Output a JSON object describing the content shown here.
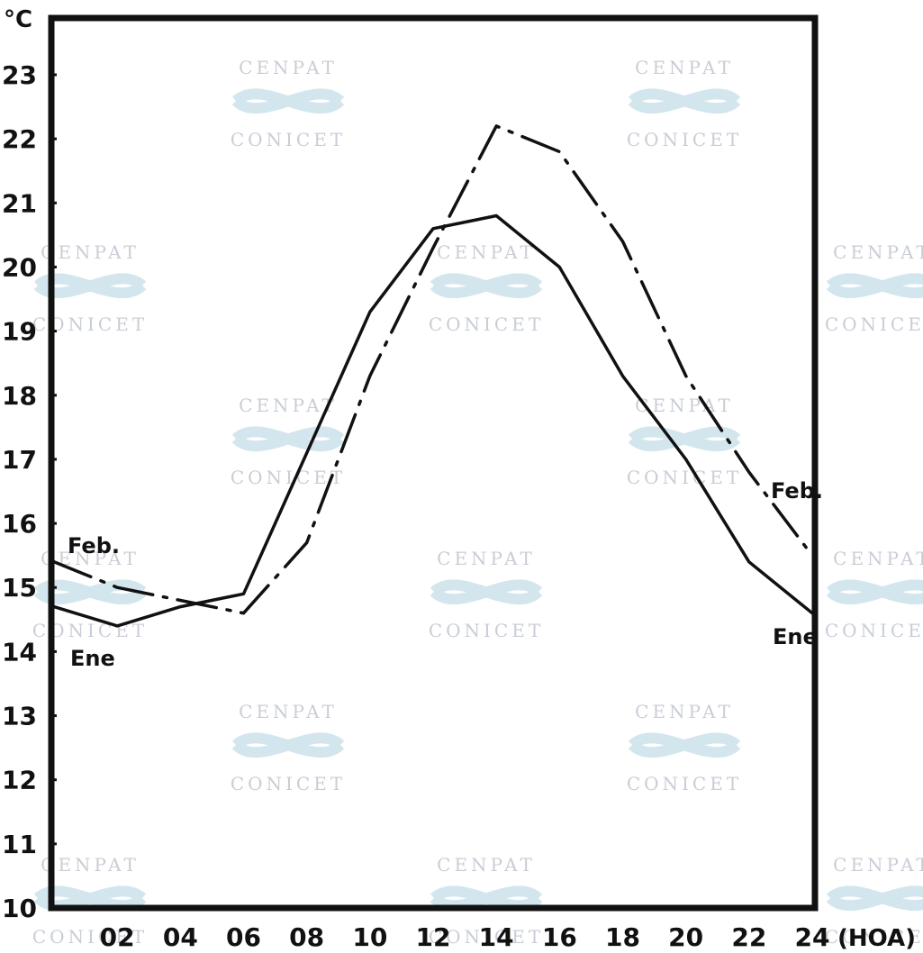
{
  "chart_data": {
    "type": "line",
    "title": "",
    "ylabel": "°C",
    "xlabel": "(HOA)",
    "ylim": [
      10,
      24
    ],
    "xlim": [
      0,
      24
    ],
    "grid": false,
    "x_ticks": [
      "02",
      "04",
      "06",
      "08",
      "10",
      "12",
      "14",
      "16",
      "18",
      "20",
      "22",
      "24"
    ],
    "y_ticks": [
      "10",
      "11",
      "12",
      "13",
      "14",
      "15",
      "16",
      "17",
      "18",
      "19",
      "20",
      "21",
      "22",
      "23"
    ],
    "series": [
      {
        "name": "Ene",
        "style": "solid",
        "x": [
          0,
          2,
          4,
          6,
          8,
          10,
          12,
          14,
          16,
          18,
          20,
          22,
          24
        ],
        "y": [
          14.7,
          14.4,
          14.7,
          14.9,
          17.1,
          19.3,
          20.6,
          20.8,
          20.0,
          18.3,
          17.0,
          15.4,
          14.6
        ]
      },
      {
        "name": "Feb.",
        "style": "dash-dot",
        "x": [
          0,
          2,
          4,
          6,
          8,
          10,
          12,
          14,
          16,
          18,
          20,
          22,
          24
        ],
        "y": [
          15.4,
          15.0,
          14.8,
          14.6,
          15.7,
          18.3,
          20.3,
          22.2,
          21.8,
          20.4,
          18.3,
          16.8,
          15.5
        ]
      }
    ]
  },
  "watermark": {
    "top": "CENPAT",
    "bottom": "CONICET"
  }
}
